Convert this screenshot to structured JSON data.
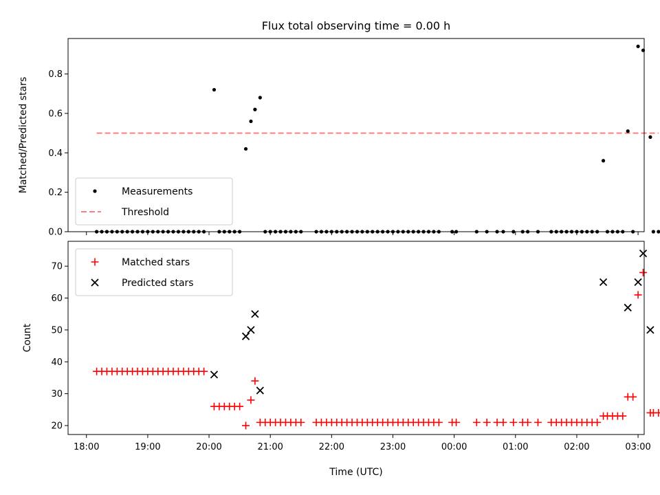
{
  "chart_data": [
    {
      "type": "scatter",
      "title": "Flux total observing time = 0.00 h",
      "xlabel": "",
      "ylabel": "Matched/Predicted stars",
      "xlim_hours": [
        17.7,
        27.1
      ],
      "ylim": [
        0,
        0.98
      ],
      "yticks": [
        0.0,
        0.2,
        0.4,
        0.6,
        0.8
      ],
      "ytick_labels": [
        "0.0",
        "0.2",
        "0.4",
        "0.6",
        "0.8"
      ],
      "legend_position": "lower-left",
      "legend": [
        "Measurements",
        "Threshold"
      ],
      "threshold": {
        "name": "Threshold",
        "y": 0.5,
        "x_start": "18:10",
        "x_end": "03:20",
        "color": "#ff7f7f"
      },
      "series": [
        {
          "name": "Measurements",
          "color": "#000000",
          "marker": "dot",
          "points": [
            [
              "18:10",
              0
            ],
            [
              "18:15",
              0
            ],
            [
              "18:20",
              0
            ],
            [
              "18:25",
              0
            ],
            [
              "18:30",
              0
            ],
            [
              "18:35",
              0
            ],
            [
              "18:40",
              0
            ],
            [
              "18:45",
              0
            ],
            [
              "18:50",
              0
            ],
            [
              "18:55",
              0
            ],
            [
              "19:00",
              0
            ],
            [
              "19:05",
              0
            ],
            [
              "19:10",
              0
            ],
            [
              "19:15",
              0
            ],
            [
              "19:20",
              0
            ],
            [
              "19:25",
              0
            ],
            [
              "19:30",
              0
            ],
            [
              "19:35",
              0
            ],
            [
              "19:40",
              0
            ],
            [
              "19:45",
              0
            ],
            [
              "19:50",
              0
            ],
            [
              "19:55",
              0
            ],
            [
              "20:05",
              0.72
            ],
            [
              "20:10",
              0
            ],
            [
              "20:15",
              0
            ],
            [
              "20:20",
              0
            ],
            [
              "20:25",
              0
            ],
            [
              "20:30",
              0
            ],
            [
              "20:36",
              0.42
            ],
            [
              "20:41",
              0.56
            ],
            [
              "20:45",
              0.62
            ],
            [
              "20:50",
              0.68
            ],
            [
              "20:55",
              0
            ],
            [
              "21:00",
              0
            ],
            [
              "21:05",
              0
            ],
            [
              "21:10",
              0
            ],
            [
              "21:15",
              0
            ],
            [
              "21:20",
              0
            ],
            [
              "21:25",
              0
            ],
            [
              "21:30",
              0
            ],
            [
              "21:45",
              0
            ],
            [
              "21:50",
              0
            ],
            [
              "21:55",
              0
            ],
            [
              "22:00",
              0
            ],
            [
              "22:05",
              0
            ],
            [
              "22:10",
              0
            ],
            [
              "22:15",
              0
            ],
            [
              "22:20",
              0
            ],
            [
              "22:25",
              0
            ],
            [
              "22:30",
              0
            ],
            [
              "22:35",
              0
            ],
            [
              "22:40",
              0
            ],
            [
              "22:45",
              0
            ],
            [
              "22:50",
              0
            ],
            [
              "22:55",
              0
            ],
            [
              "23:00",
              0
            ],
            [
              "23:05",
              0
            ],
            [
              "23:10",
              0
            ],
            [
              "23:15",
              0
            ],
            [
              "23:20",
              0
            ],
            [
              "23:25",
              0
            ],
            [
              "23:30",
              0
            ],
            [
              "23:35",
              0
            ],
            [
              "23:40",
              0
            ],
            [
              "23:45",
              0
            ],
            [
              "23:58",
              0
            ],
            [
              "00:02",
              0
            ],
            [
              "00:22",
              0
            ],
            [
              "00:32",
              0
            ],
            [
              "00:42",
              0
            ],
            [
              "00:48",
              0
            ],
            [
              "00:58",
              0
            ],
            [
              "01:07",
              0
            ],
            [
              "01:12",
              0
            ],
            [
              "01:22",
              0
            ],
            [
              "01:35",
              0
            ],
            [
              "01:40",
              0
            ],
            [
              "01:45",
              0
            ],
            [
              "01:50",
              0
            ],
            [
              "01:55",
              0
            ],
            [
              "02:00",
              0
            ],
            [
              "02:05",
              0
            ],
            [
              "02:10",
              0
            ],
            [
              "02:15",
              0
            ],
            [
              "02:20",
              0
            ],
            [
              "02:26",
              0.36
            ],
            [
              "02:30",
              0
            ],
            [
              "02:35",
              0
            ],
            [
              "02:40",
              0
            ],
            [
              "02:45",
              0
            ],
            [
              "02:50",
              0.51
            ],
            [
              "02:55",
              0
            ],
            [
              "03:00",
              0.94
            ],
            [
              "03:05",
              0.92
            ],
            [
              "03:12",
              0.48
            ],
            [
              "03:15",
              0
            ],
            [
              "03:20",
              0
            ],
            [
              "03:25",
              0
            ]
          ]
        }
      ]
    },
    {
      "type": "scatter",
      "title": "",
      "xlabel": "Time (UTC)",
      "ylabel": "Count",
      "xlim_hours": [
        17.7,
        27.1
      ],
      "ylim": [
        17.2,
        77.8
      ],
      "yticks": [
        20,
        30,
        40,
        50,
        60,
        70
      ],
      "ytick_labels": [
        "20",
        "30",
        "40",
        "50",
        "60",
        "70"
      ],
      "xticks_hours": [
        18,
        19,
        20,
        21,
        22,
        23,
        24,
        25,
        26,
        27
      ],
      "xtick_labels": [
        "18:00",
        "19:00",
        "20:00",
        "21:00",
        "22:00",
        "23:00",
        "00:00",
        "01:00",
        "02:00",
        "03:00"
      ],
      "legend_position": "top-left",
      "legend": [
        "Matched stars",
        "Predicted stars"
      ],
      "series": [
        {
          "name": "Matched stars",
          "color": "#ff0000",
          "marker": "plus",
          "points": [
            [
              "18:10",
              37
            ],
            [
              "18:15",
              37
            ],
            [
              "18:20",
              37
            ],
            [
              "18:25",
              37
            ],
            [
              "18:30",
              37
            ],
            [
              "18:35",
              37
            ],
            [
              "18:40",
              37
            ],
            [
              "18:45",
              37
            ],
            [
              "18:50",
              37
            ],
            [
              "18:55",
              37
            ],
            [
              "19:00",
              37
            ],
            [
              "19:05",
              37
            ],
            [
              "19:10",
              37
            ],
            [
              "19:15",
              37
            ],
            [
              "19:20",
              37
            ],
            [
              "19:25",
              37
            ],
            [
              "19:30",
              37
            ],
            [
              "19:35",
              37
            ],
            [
              "19:40",
              37
            ],
            [
              "19:45",
              37
            ],
            [
              "19:50",
              37
            ],
            [
              "19:55",
              37
            ],
            [
              "20:05",
              26
            ],
            [
              "20:10",
              26
            ],
            [
              "20:15",
              26
            ],
            [
              "20:20",
              26
            ],
            [
              "20:25",
              26
            ],
            [
              "20:30",
              26
            ],
            [
              "20:36",
              20
            ],
            [
              "20:41",
              28
            ],
            [
              "20:45",
              34
            ],
            [
              "20:50",
              21
            ],
            [
              "20:55",
              21
            ],
            [
              "21:00",
              21
            ],
            [
              "21:05",
              21
            ],
            [
              "21:10",
              21
            ],
            [
              "21:15",
              21
            ],
            [
              "21:20",
              21
            ],
            [
              "21:25",
              21
            ],
            [
              "21:30",
              21
            ],
            [
              "21:45",
              21
            ],
            [
              "21:50",
              21
            ],
            [
              "21:55",
              21
            ],
            [
              "22:00",
              21
            ],
            [
              "22:05",
              21
            ],
            [
              "22:10",
              21
            ],
            [
              "22:15",
              21
            ],
            [
              "22:20",
              21
            ],
            [
              "22:25",
              21
            ],
            [
              "22:30",
              21
            ],
            [
              "22:35",
              21
            ],
            [
              "22:40",
              21
            ],
            [
              "22:45",
              21
            ],
            [
              "22:50",
              21
            ],
            [
              "22:55",
              21
            ],
            [
              "23:00",
              21
            ],
            [
              "23:05",
              21
            ],
            [
              "23:10",
              21
            ],
            [
              "23:15",
              21
            ],
            [
              "23:20",
              21
            ],
            [
              "23:25",
              21
            ],
            [
              "23:30",
              21
            ],
            [
              "23:35",
              21
            ],
            [
              "23:40",
              21
            ],
            [
              "23:45",
              21
            ],
            [
              "23:58",
              21
            ],
            [
              "00:02",
              21
            ],
            [
              "00:22",
              21
            ],
            [
              "00:32",
              21
            ],
            [
              "00:42",
              21
            ],
            [
              "00:48",
              21
            ],
            [
              "00:58",
              21
            ],
            [
              "01:07",
              21
            ],
            [
              "01:12",
              21
            ],
            [
              "01:22",
              21
            ],
            [
              "01:35",
              21
            ],
            [
              "01:40",
              21
            ],
            [
              "01:45",
              21
            ],
            [
              "01:50",
              21
            ],
            [
              "01:55",
              21
            ],
            [
              "02:00",
              21
            ],
            [
              "02:05",
              21
            ],
            [
              "02:10",
              21
            ],
            [
              "02:15",
              21
            ],
            [
              "02:20",
              21
            ],
            [
              "02:26",
              23
            ],
            [
              "02:30",
              23
            ],
            [
              "02:35",
              23
            ],
            [
              "02:40",
              23
            ],
            [
              "02:45",
              23
            ],
            [
              "02:50",
              29
            ],
            [
              "02:55",
              29
            ],
            [
              "03:00",
              61
            ],
            [
              "03:05",
              68
            ],
            [
              "03:12",
              24
            ],
            [
              "03:15",
              24
            ],
            [
              "03:20",
              24
            ],
            [
              "03:25",
              24
            ]
          ]
        },
        {
          "name": "Predicted stars",
          "color": "#000000",
          "marker": "cross",
          "points": [
            [
              "20:05",
              36
            ],
            [
              "20:36",
              48
            ],
            [
              "20:41",
              50
            ],
            [
              "20:45",
              55
            ],
            [
              "20:50",
              31
            ],
            [
              "02:26",
              65
            ],
            [
              "02:50",
              57
            ],
            [
              "03:00",
              65
            ],
            [
              "03:05",
              74
            ],
            [
              "03:12",
              50
            ]
          ]
        }
      ]
    }
  ]
}
